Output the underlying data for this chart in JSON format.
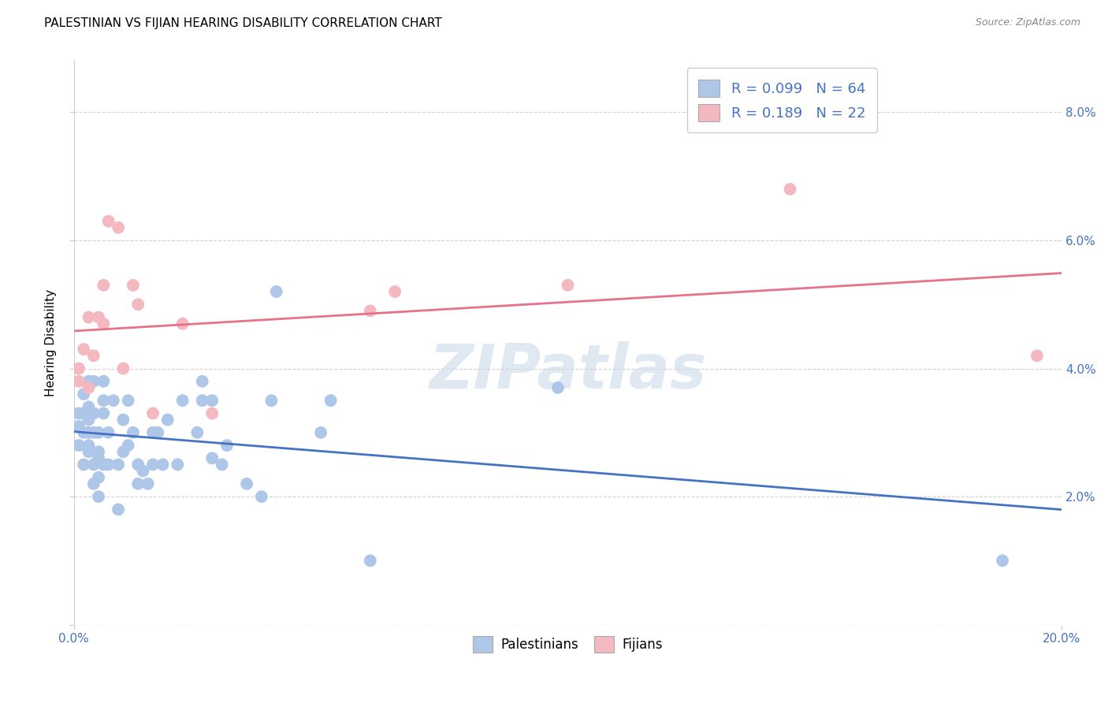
{
  "title": "PALESTINIAN VS FIJIAN HEARING DISABILITY CORRELATION CHART",
  "source": "Source: ZipAtlas.com",
  "ylabel": "Hearing Disability",
  "xlim": [
    0.0,
    0.2
  ],
  "ylim": [
    0.0,
    0.088
  ],
  "x_ticks": [
    0.0,
    0.2
  ],
  "x_tick_labels": [
    "0.0%",
    "20.0%"
  ],
  "y_ticks": [
    0.0,
    0.02,
    0.04,
    0.06,
    0.08
  ],
  "y_tick_labels_right": [
    "",
    "2.0%",
    "4.0%",
    "6.0%",
    "8.0%"
  ],
  "palestinian_color": "#aec6e8",
  "fijian_color": "#f4b8c1",
  "trendline_blue": "#4472c4",
  "trendline_pink": "#e8728a",
  "watermark": "ZIPatlas",
  "blue_R": 0.099,
  "blue_N": 64,
  "pink_R": 0.189,
  "pink_N": 22,
  "palestinian_x": [
    0.001,
    0.001,
    0.001,
    0.002,
    0.002,
    0.002,
    0.002,
    0.003,
    0.003,
    0.003,
    0.003,
    0.003,
    0.003,
    0.004,
    0.004,
    0.004,
    0.004,
    0.004,
    0.005,
    0.005,
    0.005,
    0.005,
    0.005,
    0.006,
    0.006,
    0.006,
    0.006,
    0.007,
    0.007,
    0.008,
    0.009,
    0.009,
    0.01,
    0.01,
    0.011,
    0.011,
    0.012,
    0.013,
    0.013,
    0.014,
    0.015,
    0.016,
    0.016,
    0.017,
    0.018,
    0.019,
    0.021,
    0.022,
    0.025,
    0.026,
    0.026,
    0.028,
    0.028,
    0.03,
    0.031,
    0.035,
    0.038,
    0.04,
    0.041,
    0.05,
    0.052,
    0.06,
    0.098,
    0.188
  ],
  "palestinian_y": [
    0.031,
    0.033,
    0.028,
    0.03,
    0.025,
    0.033,
    0.036,
    0.028,
    0.03,
    0.032,
    0.034,
    0.038,
    0.027,
    0.025,
    0.022,
    0.03,
    0.033,
    0.038,
    0.02,
    0.023,
    0.026,
    0.03,
    0.027,
    0.025,
    0.038,
    0.035,
    0.033,
    0.025,
    0.03,
    0.035,
    0.018,
    0.025,
    0.027,
    0.032,
    0.028,
    0.035,
    0.03,
    0.022,
    0.025,
    0.024,
    0.022,
    0.025,
    0.03,
    0.03,
    0.025,
    0.032,
    0.025,
    0.035,
    0.03,
    0.035,
    0.038,
    0.026,
    0.035,
    0.025,
    0.028,
    0.022,
    0.02,
    0.035,
    0.052,
    0.03,
    0.035,
    0.01,
    0.037,
    0.01
  ],
  "fijian_x": [
    0.001,
    0.001,
    0.002,
    0.003,
    0.003,
    0.004,
    0.005,
    0.006,
    0.006,
    0.007,
    0.009,
    0.01,
    0.012,
    0.013,
    0.016,
    0.022,
    0.028,
    0.06,
    0.065,
    0.1,
    0.145,
    0.195
  ],
  "fijian_y": [
    0.04,
    0.038,
    0.043,
    0.037,
    0.048,
    0.042,
    0.048,
    0.047,
    0.053,
    0.063,
    0.062,
    0.04,
    0.053,
    0.05,
    0.033,
    0.047,
    0.033,
    0.049,
    0.052,
    0.053,
    0.068,
    0.042
  ],
  "background_color": "#ffffff",
  "grid_color": "#cccccc",
  "title_fontsize": 11,
  "axis_label_fontsize": 11,
  "tick_fontsize": 11,
  "legend_fontsize": 13,
  "dot_size": 130
}
